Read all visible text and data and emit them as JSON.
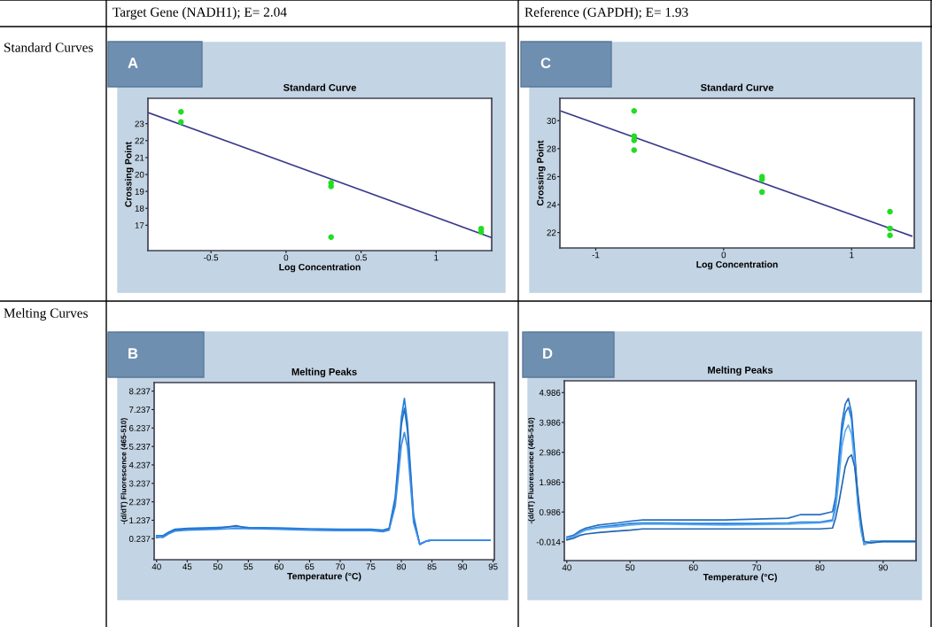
{
  "chart_data": [
    {
      "type": "scatter",
      "title": "Standard Curve",
      "subtitle": "Target Gene (NADH1); E= 2.04",
      "xlabel": "Log Concentration",
      "ylabel": "Crossing Point",
      "annotations": [
        "A",
        "Standard Curves"
      ],
      "xlim": [
        -0.92,
        1.37
      ],
      "ylim": [
        15.5,
        24.5
      ],
      "xticks": [
        -0.5,
        0,
        0.5,
        1
      ],
      "yticks": [
        17,
        18,
        19,
        20,
        21,
        22,
        23
      ],
      "grid": false,
      "marker": "circle",
      "series": [
        {
          "type": "scatter",
          "color": "#22dd22",
          "x": [
            -0.7,
            -0.7,
            0.3,
            0.3,
            0.3,
            1.3,
            1.3
          ],
          "values": [
            23.7,
            23.1,
            19.5,
            19.3,
            16.3,
            16.8,
            16.6
          ]
        },
        {
          "type": "line",
          "color": "#3a3a8c",
          "x": [
            -0.92,
            1.37
          ],
          "values": [
            23.66,
            16.27
          ],
          "marker": "none"
        }
      ]
    },
    {
      "type": "scatter",
      "title": "Standard Curve",
      "subtitle": "Reference (GAPDH); E= 1.93",
      "xlabel": "Log Concentration",
      "ylabel": "Crossing Point",
      "annotations": [
        "C"
      ],
      "xlim": [
        -1.28,
        1.49
      ],
      "ylim": [
        20.9,
        31.6
      ],
      "xticks": [
        -1,
        0,
        1
      ],
      "yticks": [
        22,
        24,
        26,
        28,
        30
      ],
      "grid": false,
      "marker": "circle",
      "series": [
        {
          "type": "scatter",
          "color": "#22dd22",
          "x": [
            -0.7,
            -0.7,
            -0.7,
            -0.7,
            0.3,
            0.3,
            0.3,
            1.3,
            1.3,
            1.3
          ],
          "values": [
            30.7,
            28.9,
            28.6,
            27.9,
            26.0,
            25.8,
            24.9,
            23.5,
            22.3,
            21.8
          ]
        },
        {
          "type": "line",
          "color": "#3a3a8c",
          "x": [
            -1.27,
            1.47
          ],
          "values": [
            30.68,
            21.75
          ],
          "marker": "none"
        }
      ]
    },
    {
      "type": "line",
      "title": "Melting Peaks",
      "xlabel": "Temperature (°C)",
      "ylabel": "-(d/dT) Fluorescence (465-510)",
      "annotations": [
        "B",
        "Melting Curves"
      ],
      "xlim": [
        39.6,
        95.2
      ],
      "ylim": [
        -0.9,
        8.7
      ],
      "xticks": [
        40,
        45,
        50,
        55,
        60,
        65,
        70,
        75,
        80,
        85,
        90,
        95
      ],
      "yticks": [
        0.237,
        1.237,
        2.237,
        3.237,
        4.237,
        5.237,
        6.237,
        7.237,
        8.237
      ],
      "grid": false,
      "marker": "none",
      "x": [
        40,
        41,
        42,
        43,
        45,
        50,
        53,
        55,
        60,
        65,
        70,
        75,
        77,
        78,
        79,
        79.5,
        80,
        80.5,
        81,
        81.5,
        82,
        83,
        84,
        85,
        90,
        94.5
      ],
      "series": [
        {
          "color": "#1e7fe0",
          "values": [
            0.4,
            0.4,
            0.6,
            0.75,
            0.8,
            0.85,
            0.9,
            0.85,
            0.82,
            0.78,
            0.75,
            0.75,
            0.7,
            0.8,
            2.5,
            4.5,
            6.8,
            7.84,
            6.5,
            4.0,
            1.5,
            -0.08,
            0.1,
            0.16,
            0.16,
            0.16
          ]
        },
        {
          "color": "#2a6fc0",
          "values": [
            0.3,
            0.35,
            0.55,
            0.7,
            0.75,
            0.8,
            0.95,
            0.8,
            0.78,
            0.72,
            0.7,
            0.7,
            0.65,
            0.75,
            2.3,
            4.2,
            6.4,
            7.3,
            6.1,
            3.7,
            1.3,
            -0.05,
            0.1,
            0.16,
            0.16,
            0.16
          ]
        },
        {
          "color": "#3b8ee8",
          "values": [
            0.35,
            0.3,
            0.5,
            0.65,
            0.7,
            0.75,
            0.8,
            0.78,
            0.75,
            0.7,
            0.68,
            0.68,
            0.62,
            0.7,
            2.0,
            3.6,
            5.3,
            6.0,
            5.2,
            3.2,
            1.1,
            -0.05,
            0.1,
            0.16,
            0.16,
            0.16
          ]
        }
      ]
    },
    {
      "type": "line",
      "title": "Melting Peaks",
      "xlabel": "Temperature (°C)",
      "ylabel": "-(d/dT) Fluorescence (465-510)",
      "annotations": [
        "D"
      ],
      "xlim": [
        39.6,
        95.2
      ],
      "ylim": [
        -0.64,
        5.38
      ],
      "xticks": [
        40,
        50,
        60,
        70,
        80,
        90
      ],
      "yticks": [
        -0.014,
        0.986,
        1.986,
        2.986,
        3.986,
        4.986
      ],
      "grid": false,
      "marker": "none",
      "x": [
        40,
        41,
        42,
        43,
        45,
        48,
        50,
        52,
        55,
        60,
        65,
        70,
        75,
        77,
        80,
        82,
        82.5,
        83,
        83.5,
        84,
        84.5,
        85,
        85.5,
        86,
        86.5,
        87,
        88,
        90,
        95
      ],
      "series": [
        {
          "color": "#2a6fc0",
          "values": [
            0.15,
            0.2,
            0.35,
            0.45,
            0.55,
            0.62,
            0.68,
            0.72,
            0.72,
            0.72,
            0.72,
            0.75,
            0.78,
            0.9,
            0.9,
            1.0,
            1.5,
            2.8,
            4.0,
            4.6,
            4.79,
            4.3,
            3.0,
            1.5,
            0.5,
            -0.1,
            0.0,
            0.0,
            0.0
          ]
        },
        {
          "color": "#1e7fe0",
          "values": [
            0.1,
            0.15,
            0.3,
            0.4,
            0.48,
            0.55,
            0.6,
            0.62,
            0.62,
            0.6,
            0.6,
            0.6,
            0.62,
            0.65,
            0.65,
            0.72,
            1.3,
            2.5,
            3.7,
            4.3,
            4.5,
            4.1,
            2.8,
            1.3,
            0.4,
            -0.1,
            0.0,
            0.0,
            0.0
          ]
        },
        {
          "color": "#5aaaf0",
          "values": [
            0.12,
            0.15,
            0.28,
            0.38,
            0.45,
            0.5,
            0.55,
            0.58,
            0.58,
            0.56,
            0.55,
            0.56,
            0.58,
            0.6,
            0.62,
            0.68,
            1.1,
            2.1,
            3.2,
            3.7,
            3.9,
            3.6,
            2.6,
            1.2,
            0.35,
            -0.1,
            0.0,
            0.0,
            0.0
          ]
        },
        {
          "color": "#2266b0",
          "values": [
            0.05,
            0.1,
            0.2,
            0.25,
            0.3,
            0.35,
            0.38,
            0.42,
            0.42,
            0.42,
            0.42,
            0.42,
            0.42,
            0.42,
            0.42,
            0.45,
            0.8,
            1.3,
            1.9,
            2.5,
            2.8,
            2.9,
            2.5,
            1.6,
            0.7,
            0.0,
            -0.05,
            0.0,
            0.0
          ]
        }
      ]
    }
  ]
}
